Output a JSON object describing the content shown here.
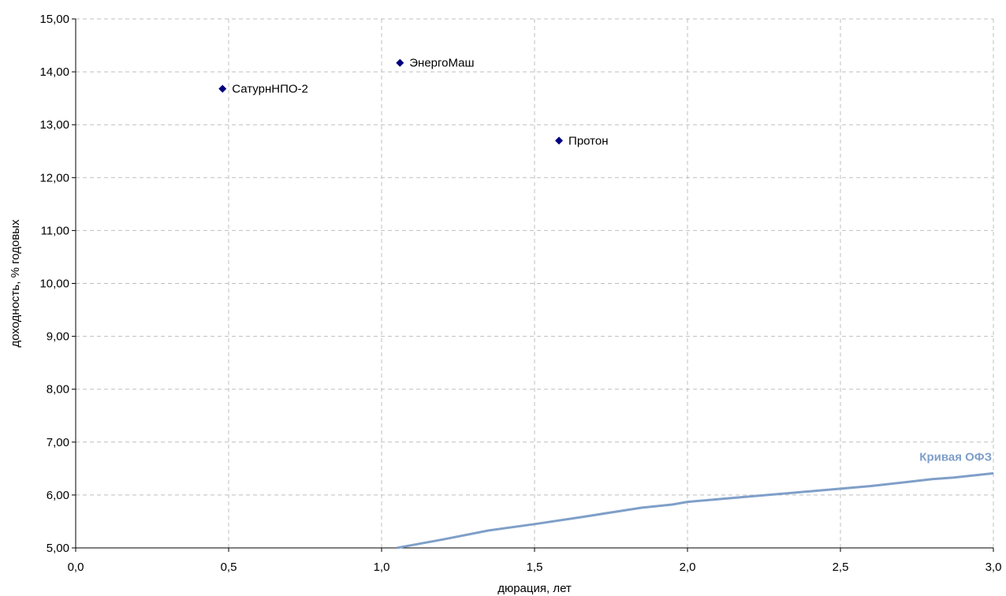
{
  "chart_data": {
    "type": "scatter",
    "title": "",
    "xlabel": "дюрация, лет",
    "ylabel": "доходность, % годовых",
    "xlim": [
      0,
      3
    ],
    "ylim": [
      5,
      15
    ],
    "x_ticks": [
      0,
      0.5,
      1,
      1.5,
      2,
      2.5,
      3
    ],
    "x_tick_labels": [
      "0,0",
      "0,5",
      "1,0",
      "1,5",
      "2,0",
      "2,5",
      "3,0"
    ],
    "y_ticks": [
      5,
      6,
      7,
      8,
      9,
      10,
      11,
      12,
      13,
      14,
      15
    ],
    "y_tick_labels": [
      "5,00",
      "6,00",
      "7,00",
      "8,00",
      "9,00",
      "10,00",
      "11,00",
      "12,00",
      "13,00",
      "14,00",
      "15,00"
    ],
    "grid": true,
    "points": [
      {
        "label": "СатурнНПО-2",
        "x": 0.48,
        "y": 13.68
      },
      {
        "label": "ЭнергоМаш",
        "x": 1.06,
        "y": 14.17
      },
      {
        "label": "Протон",
        "x": 1.58,
        "y": 12.7
      }
    ],
    "marker_color": "#000080",
    "curve": {
      "name": "Кривая ОФЗ",
      "color": "#7f9fc8",
      "x": [
        1.05,
        1.2,
        1.35,
        1.5,
        1.65,
        1.85,
        1.95,
        2.0,
        2.2,
        2.4,
        2.6,
        2.8,
        2.87,
        3.0
      ],
      "y": [
        5.0,
        5.16,
        5.33,
        5.45,
        5.58,
        5.76,
        5.82,
        5.87,
        5.97,
        6.07,
        6.17,
        6.3,
        6.33,
        6.41
      ]
    }
  }
}
